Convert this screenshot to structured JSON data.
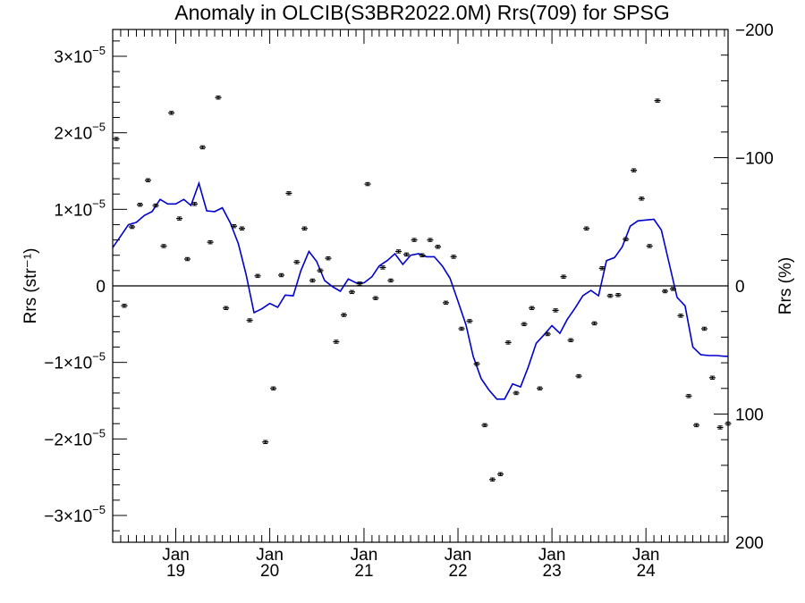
{
  "chart_data": {
    "type": "scatter",
    "title": "Anomaly in OLCIB(S3BR2022.0M) Rrs(709) for SPSG",
    "ylabel": "Rrs (str⁻¹)",
    "ylabel_right": "Rrs (%)",
    "xlim": [
      "2018-05-01",
      "2024-11-15"
    ],
    "ylim": [
      -3.35e-05,
      3.35e-05
    ],
    "y2lim": [
      -200,
      200
    ],
    "y2_reversed": true,
    "x_ticks": [
      {
        "date": "2019-01-01",
        "month": "Jan",
        "year": "19"
      },
      {
        "date": "2020-01-01",
        "month": "Jan",
        "year": "20"
      },
      {
        "date": "2021-01-01",
        "month": "Jan",
        "year": "21"
      },
      {
        "date": "2022-01-01",
        "month": "Jan",
        "year": "22"
      },
      {
        "date": "2023-01-01",
        "month": "Jan",
        "year": "23"
      },
      {
        "date": "2024-01-01",
        "month": "Jan",
        "year": "24"
      }
    ],
    "y_ticks": [
      {
        "value": 3e-05,
        "label": "3×10",
        "exp": "−5"
      },
      {
        "value": 2e-05,
        "label": "2×10",
        "exp": "−5"
      },
      {
        "value": 1e-05,
        "label": "1×10",
        "exp": "−5"
      },
      {
        "value": 0,
        "label": "0",
        "exp": ""
      },
      {
        "value": -1e-05,
        "label": "−1×10",
        "exp": "−5"
      },
      {
        "value": -2e-05,
        "label": "−2×10",
        "exp": "−5"
      },
      {
        "value": -3e-05,
        "label": "−3×10",
        "exp": "−5"
      }
    ],
    "y2_ticks": [
      {
        "value": -200,
        "label": "−200"
      },
      {
        "value": -100,
        "label": "−100"
      },
      {
        "value": 0,
        "label": "0"
      },
      {
        "value": 100,
        "label": "100"
      },
      {
        "value": 200,
        "label": "200"
      }
    ],
    "reference_line": 0,
    "colors": {
      "points": "#000000",
      "smoothed": "#0000cc",
      "axis": "#000000"
    },
    "series": [
      {
        "kind": "points_with_errorbars",
        "x": [
          "2018-05-15",
          "2018-06-15",
          "2018-07-15",
          "2018-08-15",
          "2018-09-15",
          "2018-10-15",
          "2018-11-15",
          "2018-12-15",
          "2019-01-15",
          "2019-02-15",
          "2019-03-15",
          "2019-04-15",
          "2019-05-15",
          "2019-06-15",
          "2019-07-15",
          "2019-08-15",
          "2019-09-15",
          "2019-10-15",
          "2019-11-15",
          "2019-12-15",
          "2020-01-15",
          "2020-02-15",
          "2020-03-15",
          "2020-04-15",
          "2020-05-15",
          "2020-06-15",
          "2020-07-15",
          "2020-08-15",
          "2020-09-15",
          "2020-10-15",
          "2020-11-15",
          "2020-12-15",
          "2021-01-15",
          "2021-02-15",
          "2021-03-15",
          "2021-04-15",
          "2021-05-15",
          "2021-06-15",
          "2021-07-15",
          "2021-08-15",
          "2021-09-15",
          "2021-10-15",
          "2021-11-15",
          "2021-12-15",
          "2022-01-15",
          "2022-02-15",
          "2022-03-15",
          "2022-04-15",
          "2022-05-15",
          "2022-06-15",
          "2022-07-15",
          "2022-08-15",
          "2022-09-15",
          "2022-10-15",
          "2022-11-15",
          "2022-12-15",
          "2023-01-15",
          "2023-02-15",
          "2023-03-15",
          "2023-04-15",
          "2023-05-15",
          "2023-06-15",
          "2023-07-15",
          "2023-08-15",
          "2023-09-15",
          "2023-10-15",
          "2023-11-15",
          "2023-12-15",
          "2024-01-15",
          "2024-02-15",
          "2024-03-15",
          "2024-04-15",
          "2024-05-15",
          "2024-06-15",
          "2024-07-15",
          "2024-08-15",
          "2024-09-15",
          "2024-10-15",
          "2024-11-15"
        ],
        "y": [
          1.92e-05,
          -2.6e-06,
          7.7e-06,
          1.06e-05,
          1.38e-05,
          1.05e-05,
          5.2e-06,
          2.26e-05,
          8.8e-06,
          3.5e-06,
          1.07e-05,
          1.81e-05,
          5.7e-06,
          2.46e-05,
          -2.9e-06,
          7.8e-06,
          7.5e-06,
          -4.5e-06,
          1.3e-06,
          -2.04e-05,
          -1.34e-05,
          1.4e-06,
          1.21e-05,
          3.1e-06,
          7.5e-06,
          7e-07,
          2e-06,
          3.6e-06,
          -7.3e-06,
          -3.8e-06,
          -8e-07,
          3e-07,
          1.33e-05,
          -1.6e-06,
          2.4e-06,
          7e-07,
          4.5e-06,
          4.1e-06,
          6e-06,
          4e-06,
          6e-06,
          5.1e-06,
          -2.2e-06,
          3.8e-06,
          -5.6e-06,
          -4.6e-06,
          -1.02e-05,
          -1.82e-05,
          -2.53e-05,
          -2.46e-05,
          -7.4e-06,
          -1.4e-05,
          -5e-06,
          -2.9e-06,
          -1.34e-05,
          -6.3e-06,
          -3.2e-06,
          1.2e-06,
          -7.1e-06,
          -1.18e-05,
          7.5e-06,
          -4.9e-06,
          2.3e-06,
          -1.3e-06,
          -1.2e-06,
          6.1e-06,
          1.51e-05,
          1.14e-05,
          5.2e-06,
          2.42e-05,
          -7e-07,
          -4e-07,
          -3.9e-06,
          -1.44e-05,
          -1.82e-05,
          -5.6e-06,
          -1.2e-05,
          -1.85e-05,
          -1.8e-05
        ],
        "error": 2e-07
      },
      {
        "kind": "smoothed_line",
        "x": [
          "2018-05-01",
          "2018-06-01",
          "2018-07-01",
          "2018-08-01",
          "2018-09-01",
          "2018-10-01",
          "2018-11-01",
          "2018-12-01",
          "2019-01-01",
          "2019-02-01",
          "2019-03-01",
          "2019-04-01",
          "2019-05-01",
          "2019-06-01",
          "2019-07-01",
          "2019-08-01",
          "2019-09-01",
          "2019-10-01",
          "2019-11-01",
          "2019-12-01",
          "2020-01-01",
          "2020-02-01",
          "2020-03-01",
          "2020-04-01",
          "2020-05-01",
          "2020-06-01",
          "2020-07-01",
          "2020-08-01",
          "2020-09-01",
          "2020-10-01",
          "2020-11-01",
          "2020-12-01",
          "2021-01-01",
          "2021-02-01",
          "2021-03-01",
          "2021-04-01",
          "2021-05-01",
          "2021-06-01",
          "2021-07-01",
          "2021-08-01",
          "2021-09-01",
          "2021-10-01",
          "2021-11-01",
          "2021-12-01",
          "2022-01-01",
          "2022-02-01",
          "2022-03-01",
          "2022-04-01",
          "2022-05-01",
          "2022-06-01",
          "2022-07-01",
          "2022-08-01",
          "2022-09-01",
          "2022-10-01",
          "2022-11-01",
          "2022-12-01",
          "2023-01-01",
          "2023-02-01",
          "2023-03-01",
          "2023-04-01",
          "2023-05-01",
          "2023-06-01",
          "2023-07-01",
          "2023-08-01",
          "2023-09-01",
          "2023-10-01",
          "2023-11-01",
          "2023-12-01",
          "2024-01-01",
          "2024-02-01",
          "2024-03-01",
          "2024-04-01",
          "2024-05-01",
          "2024-06-01",
          "2024-07-01",
          "2024-08-01",
          "2024-09-01",
          "2024-10-01",
          "2024-11-01",
          "2024-11-15"
        ],
        "y": [
          5e-06,
          6.5e-06,
          8e-06,
          8.3e-06,
          9.2e-06,
          9.7e-06,
          1.13e-05,
          1.07e-05,
          1.07e-05,
          1.13e-05,
          1.05e-05,
          1.34e-05,
          9.8e-06,
          9.7e-06,
          1.02e-05,
          8.2e-06,
          5.5e-06,
          1.5e-06,
          -3.5e-06,
          -3e-06,
          -2.3e-06,
          -2.8e-06,
          -1.2e-06,
          -1.3e-06,
          2e-06,
          4.5e-06,
          3.2e-06,
          7e-07,
          -1e-07,
          -7e-07,
          9e-07,
          4e-07,
          4e-07,
          1.2e-06,
          2.6e-06,
          3.3e-06,
          4.2e-06,
          2.8e-06,
          4e-06,
          4.2e-06,
          3.8e-06,
          3.8e-06,
          2.6e-06,
          1e-06,
          -2e-06,
          -5.1e-06,
          -9.2e-06,
          -1.21e-05,
          -1.36e-05,
          -1.48e-05,
          -1.48e-05,
          -1.28e-05,
          -1.32e-05,
          -1.06e-05,
          -7.5e-06,
          -6.4e-06,
          -5.2e-06,
          -6.2e-06,
          -4.4e-06,
          -2.9e-06,
          -1.3e-06,
          -6e-07,
          -1.3e-06,
          3.3e-06,
          3.7e-06,
          5.1e-06,
          7.8e-06,
          8.5e-06,
          8.6e-06,
          8.7e-06,
          7.3e-06,
          2.8e-06,
          -1.5e-06,
          -2.6e-06,
          -8e-06,
          -9e-06,
          -9.1e-06,
          -9.1e-06,
          -9.2e-06,
          -9.2e-06
        ]
      }
    ]
  }
}
